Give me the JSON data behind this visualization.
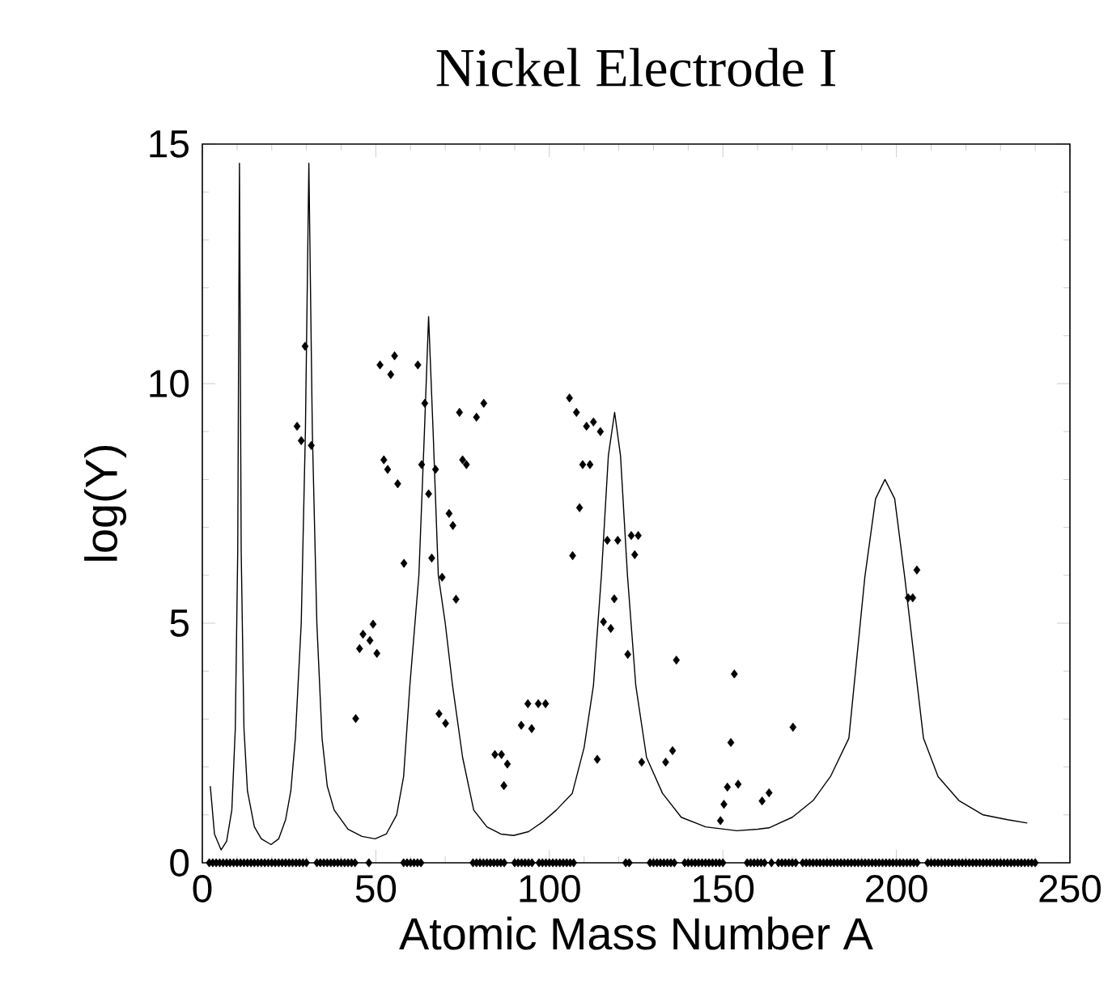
{
  "chart_data": {
    "type": "scatter",
    "title": "Nickel Electrode I",
    "xlabel": "Atomic Mass Number A",
    "ylabel": "log(Y)",
    "xlim": [
      0,
      250
    ],
    "ylim": [
      0,
      15
    ],
    "xticks": [
      0,
      50,
      100,
      150,
      200,
      250
    ],
    "yticks": [
      0,
      5,
      10,
      15
    ],
    "series": [
      {
        "type": "line",
        "color": "#000000",
        "marker": "none",
        "line_style": "solid",
        "x": [
          2.3,
          3.5,
          5.4,
          7,
          8.5,
          9.5,
          10.2,
          10.7,
          11.2,
          12,
          13,
          15,
          17,
          19.8,
          22,
          24,
          25.5,
          26.8,
          28.5,
          29.7,
          30.7,
          31.7,
          33,
          34.5,
          36,
          38,
          42,
          46,
          49.8,
          53,
          56,
          58,
          59.8,
          62.4,
          64,
          65.2,
          66.5,
          68,
          70,
          72.1,
          75,
          78.2,
          82,
          86,
          89.7,
          94,
          98,
          102,
          106.6,
          110,
          112.7,
          115,
          117,
          118.8,
          120.5,
          122.5,
          124.9,
          128,
          132.6,
          138,
          145,
          154,
          160,
          163.3,
          170,
          176,
          181,
          186.3,
          190.9,
          194,
          196.7,
          199.5,
          202.4,
          207.8,
          212,
          218,
          225,
          232,
          237.7
        ],
        "values": [
          1.6,
          0.6,
          0.27,
          0.45,
          1.1,
          2.8,
          6.5,
          14.6,
          6.5,
          2.8,
          1.5,
          0.75,
          0.5,
          0.38,
          0.5,
          0.9,
          1.5,
          2.6,
          5,
          9,
          14.6,
          9,
          5,
          2.6,
          1.6,
          1.1,
          0.7,
          0.55,
          0.5,
          0.6,
          1.0,
          1.8,
          3.7,
          6,
          9,
          11.4,
          9,
          6,
          5,
          3.7,
          2.2,
          1.1,
          0.75,
          0.6,
          0.57,
          0.65,
          0.85,
          1.1,
          1.45,
          2.4,
          3.7,
          6,
          8.5,
          9.4,
          8.5,
          6,
          3.7,
          2.2,
          1.45,
          0.95,
          0.75,
          0.67,
          0.7,
          0.73,
          0.95,
          1.3,
          1.8,
          2.6,
          5.96,
          7.6,
          8.0,
          7.6,
          5.96,
          2.6,
          1.8,
          1.3,
          1.0,
          0.9,
          0.83
        ]
      },
      {
        "color": "#000000",
        "marker": "diamond",
        "x": [
          27.3,
          28.5,
          29.6,
          31.4,
          44.2,
          45.3,
          46.3,
          48.3,
          49.2,
          50.3,
          51.2,
          52.3,
          53.4,
          54.3,
          55.4,
          56.3,
          58.1,
          62.1,
          63.2,
          64.1,
          65.2,
          66.1,
          67.2,
          68.2,
          69.1,
          70.1,
          71.1,
          72.2,
          73.1,
          74.1,
          75.0,
          76.1,
          79.0,
          81.1,
          84.3,
          86.2,
          87.9,
          86.9,
          91.9,
          93.8,
          94.9,
          96.8,
          98.9,
          105.8,
          106.7,
          107.8,
          108.7,
          109.6,
          110.7,
          111.7,
          112.7,
          113.8,
          114.7,
          115.6,
          116.7,
          117.7,
          118.7,
          119.7,
          122.6,
          123.6,
          124.6,
          125.6,
          126.6,
          133.5,
          135.5,
          136.6,
          149.3,
          150.3,
          151.3,
          152.3,
          153.3,
          154.4,
          161.3,
          163.3,
          170.2,
          203.4,
          204.7,
          205.9
        ],
        "values": [
          9.11,
          8.81,
          10.78,
          8.71,
          3.01,
          4.47,
          4.77,
          4.64,
          4.98,
          4.37,
          10.39,
          8.41,
          8.21,
          10.19,
          10.58,
          7.91,
          6.25,
          10.39,
          8.31,
          9.59,
          7.7,
          6.36,
          8.21,
          3.11,
          5.96,
          2.91,
          7.29,
          7.04,
          5.5,
          9.4,
          8.41,
          8.31,
          9.3,
          9.59,
          2.26,
          2.26,
          2.06,
          1.61,
          2.87,
          3.32,
          2.8,
          3.32,
          3.32,
          9.7,
          6.41,
          9.4,
          7.41,
          8.31,
          9.11,
          8.31,
          9.2,
          2.16,
          9.0,
          5.03,
          6.73,
          4.89,
          5.51,
          6.73,
          4.35,
          6.83,
          6.43,
          6.83,
          2.1,
          2.1,
          2.34,
          4.23,
          0.88,
          1.22,
          1.58,
          2.51,
          3.94,
          1.64,
          1.29,
          1.46,
          2.83,
          5.53,
          5.53,
          6.11
        ]
      },
      {
        "color": "#000000",
        "marker": "diamond",
        "x": [
          2,
          3,
          4,
          5,
          6,
          7,
          8,
          9,
          10,
          11,
          12,
          13,
          14,
          15,
          16,
          17,
          18,
          19,
          20,
          21,
          22,
          23,
          24,
          25,
          26,
          27,
          28,
          29,
          30,
          33,
          34,
          35,
          36,
          37,
          38,
          39,
          40,
          41,
          42,
          43,
          44,
          48,
          58,
          59,
          60,
          61,
          62,
          63,
          78,
          79,
          80,
          81,
          82,
          83,
          84,
          85,
          86,
          87,
          90,
          91,
          92,
          93,
          94,
          95,
          97,
          98,
          99,
          100,
          101,
          102,
          103,
          104,
          105,
          106,
          107,
          122,
          123,
          129,
          130,
          131,
          132,
          133,
          134,
          135,
          136,
          139,
          140,
          141,
          142,
          143,
          144,
          145,
          146,
          147,
          148,
          149,
          150,
          157,
          158,
          159,
          160,
          161,
          162,
          164,
          166,
          167,
          168,
          169,
          170,
          171,
          173,
          174,
          175,
          176,
          177,
          178,
          179,
          180,
          181,
          182,
          183,
          184,
          185,
          186,
          187,
          188,
          189,
          190,
          191,
          192,
          193,
          194,
          195,
          196,
          197,
          198,
          199,
          200,
          201,
          202,
          203,
          204,
          205,
          206,
          209,
          210,
          211,
          212,
          213,
          214,
          215,
          216,
          217,
          218,
          219,
          220,
          221,
          222,
          223,
          224,
          225,
          226,
          227,
          228,
          229,
          230,
          231,
          232,
          233,
          234,
          235,
          236,
          237,
          238,
          239,
          240
        ],
        "values": [
          0,
          0,
          0,
          0,
          0,
          0,
          0,
          0,
          0,
          0,
          0,
          0,
          0,
          0,
          0,
          0,
          0,
          0,
          0,
          0,
          0,
          0,
          0,
          0,
          0,
          0,
          0,
          0,
          0,
          0,
          0,
          0,
          0,
          0,
          0,
          0,
          0,
          0,
          0,
          0,
          0,
          0,
          0,
          0,
          0,
          0,
          0,
          0,
          0,
          0,
          0,
          0,
          0,
          0,
          0,
          0,
          0,
          0,
          0,
          0,
          0,
          0,
          0,
          0,
          0,
          0,
          0,
          0,
          0,
          0,
          0,
          0,
          0,
          0,
          0,
          0,
          0,
          0,
          0,
          0,
          0,
          0,
          0,
          0,
          0,
          0,
          0,
          0,
          0,
          0,
          0,
          0,
          0,
          0,
          0,
          0,
          0,
          0,
          0,
          0,
          0,
          0,
          0,
          0,
          0,
          0,
          0,
          0,
          0,
          0,
          0,
          0,
          0,
          0,
          0,
          0,
          0,
          0,
          0,
          0,
          0,
          0,
          0,
          0,
          0,
          0,
          0,
          0,
          0,
          0,
          0,
          0,
          0,
          0,
          0,
          0,
          0,
          0,
          0,
          0,
          0,
          0,
          0,
          0,
          0,
          0,
          0,
          0,
          0,
          0,
          0,
          0,
          0,
          0,
          0,
          0,
          0,
          0,
          0,
          0,
          0,
          0,
          0,
          0,
          0,
          0,
          0,
          0,
          0,
          0,
          0,
          0,
          0,
          0,
          0,
          0
        ]
      }
    ]
  }
}
